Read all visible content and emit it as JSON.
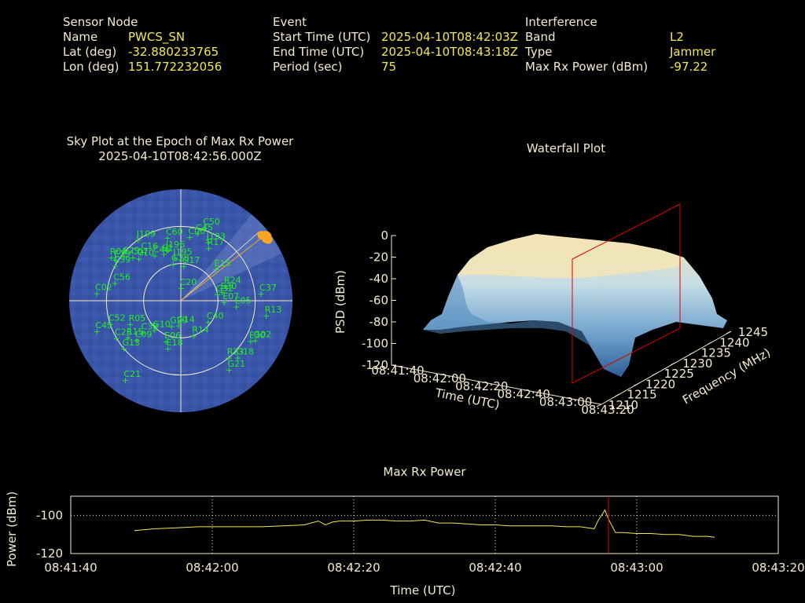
{
  "header": {
    "sensor": {
      "heading": "Sensor Node",
      "rows": [
        {
          "label": "Name",
          "value": "PWCS_SN"
        },
        {
          "label": "Lat (deg)",
          "value": "-32.880233765"
        },
        {
          "label": "Lon (deg)",
          "value": "151.772232056"
        }
      ]
    },
    "event": {
      "heading": "Event",
      "rows": [
        {
          "label": "Start Time (UTC)",
          "value": "2025-04-10T08:42:03Z"
        },
        {
          "label": "End Time (UTC)",
          "value": "2025-04-10T08:43:18Z"
        },
        {
          "label": "Period (sec)",
          "value": "75"
        }
      ]
    },
    "interference": {
      "heading": "Interference",
      "rows": [
        {
          "label": "Band",
          "value": "L2"
        },
        {
          "label": "Type",
          "value": "Jammer"
        },
        {
          "label": "Max Rx Power (dBm)",
          "value": "-97.22"
        }
      ]
    }
  },
  "colors": {
    "label": "#f3eccd",
    "value": "#f3e94c",
    "satellite": "#22ee22",
    "sky_fill": "#3a55a8",
    "marker": "#f5a623",
    "cursor": "#dd0000"
  },
  "chart_data": [
    {
      "type": "scatter",
      "title": "Sky Plot at the Epoch of Max Rx Power",
      "subtitle": "2025-04-10T08:42:56.000Z",
      "polar": true,
      "rings_deg": [
        0,
        30,
        60,
        90
      ],
      "satellites": [
        {
          "id": "C20",
          "az": 2,
          "el": 80
        },
        {
          "id": "G28",
          "az": 348,
          "el": 60
        },
        {
          "id": "J195",
          "az": 352,
          "el": 55
        },
        {
          "id": "R17",
          "az": 28,
          "el": 42
        },
        {
          "id": "J193",
          "az": 25,
          "el": 38
        },
        {
          "id": "C10",
          "az": 315,
          "el": 42
        },
        {
          "id": "C46",
          "az": 330,
          "el": 48
        },
        {
          "id": "E1",
          "az": 340,
          "el": 50
        },
        {
          "id": "J196",
          "az": 345,
          "el": 48
        },
        {
          "id": "C07",
          "az": 312,
          "el": 38
        },
        {
          "id": "C16",
          "az": 322,
          "el": 40
        },
        {
          "id": "C29",
          "az": 308,
          "el": 32
        },
        {
          "id": "C60",
          "az": 348,
          "el": 38
        },
        {
          "id": "C06",
          "az": 8,
          "el": 38
        },
        {
          "id": "C45",
          "az": 14,
          "el": 34
        },
        {
          "id": "E19",
          "az": 302,
          "el": 28
        },
        {
          "id": "J199",
          "az": 325,
          "el": 30
        },
        {
          "id": "C50",
          "az": 18,
          "el": 28
        },
        {
          "id": "R04",
          "az": 302,
          "el": 24
        },
        {
          "id": "G17",
          "az": 5,
          "el": 62
        },
        {
          "id": "C59",
          "az": 298,
          "el": 30
        },
        {
          "id": "C02",
          "az": 275,
          "el": 22
        },
        {
          "id": "C56",
          "az": 285,
          "el": 35
        },
        {
          "id": "E15",
          "az": 48,
          "el": 52
        },
        {
          "id": "R24",
          "az": 72,
          "el": 52
        },
        {
          "id": "C37",
          "az": 85,
          "el": 25
        },
        {
          "id": "E30",
          "az": 78,
          "el": 56
        },
        {
          "id": "G32",
          "az": 80,
          "el": 60
        },
        {
          "id": "E07",
          "az": 92,
          "el": 55
        },
        {
          "id": "E05",
          "az": 96,
          "el": 45
        },
        {
          "id": "R13",
          "az": 100,
          "el": 20
        },
        {
          "id": "C23",
          "az": 240,
          "el": 30
        },
        {
          "id": "C45",
          "az": 250,
          "el": 18
        },
        {
          "id": "C52",
          "az": 252,
          "el": 30
        },
        {
          "id": "R05",
          "az": 245,
          "el": 45
        },
        {
          "id": "G10",
          "az": 222,
          "el": 58
        },
        {
          "id": "C38",
          "az": 230,
          "el": 50
        },
        {
          "id": "G29",
          "az": 200,
          "el": 68
        },
        {
          "id": "G14",
          "az": 185,
          "el": 70
        },
        {
          "id": "C40",
          "az": 128,
          "el": 62
        },
        {
          "id": "E30",
          "az": 120,
          "el": 25
        },
        {
          "id": "G02",
          "az": 118,
          "el": 22
        },
        {
          "id": "R15",
          "az": 235,
          "el": 38
        },
        {
          "id": "C09",
          "az": 228,
          "el": 42
        },
        {
          "id": "E06",
          "az": 200,
          "el": 55
        },
        {
          "id": "R14",
          "az": 160,
          "el": 60
        },
        {
          "id": "E18",
          "az": 195,
          "el": 50
        },
        {
          "id": "G13",
          "az": 230,
          "el": 30
        },
        {
          "id": "R23",
          "az": 140,
          "el": 30
        },
        {
          "id": "G21",
          "az": 145,
          "el": 22
        },
        {
          "id": "C21",
          "az": 215,
          "el": 12
        },
        {
          "id": "G18",
          "az": 135,
          "el": 25
        }
      ],
      "jammer_track": [
        {
          "az": 51,
          "el": 6
        },
        {
          "az": 52,
          "el": 4
        },
        {
          "az": 53,
          "el": 3
        },
        {
          "az": 54,
          "el": 5
        },
        {
          "az": 55,
          "el": 4
        }
      ],
      "max_point": {
        "az": 52,
        "el": 4
      }
    },
    {
      "type": "heatmap",
      "title": "Waterfall Plot",
      "zlabel": "PSD (dBm)",
      "xlabel": "Time (UTC)",
      "ylabel": "Frequency (MHz)",
      "z_ticks": [
        "0",
        "-20",
        "-40",
        "-60",
        "-80",
        "-100",
        "-120"
      ],
      "time_ticks": [
        "08:41:40",
        "08:42:00",
        "08:42:20",
        "08:42:40",
        "08:43:00",
        "08:43:20"
      ],
      "freq_ticks": [
        "1210",
        "1215",
        "1220",
        "1225",
        "1230",
        "1235",
        "1240",
        "1245"
      ],
      "zlim": [
        -120,
        0
      ],
      "freq_range": [
        1210,
        1245
      ],
      "time_range": [
        "08:41:40",
        "08:43:20"
      ],
      "cursor_time": "08:42:56",
      "band_center_mhz": 1227.6,
      "plateau_psd": -15,
      "floor_psd": -90
    },
    {
      "type": "line",
      "title": "Max Rx Power",
      "xlabel": "Time (UTC)",
      "ylabel": "Power (dBm)",
      "ylim": [
        -120,
        -90
      ],
      "y_ticks": [
        "-100",
        "-120"
      ],
      "x_ticks": [
        "08:41:40",
        "08:42:00",
        "08:42:20",
        "08:42:40",
        "08:43:00",
        "08:43:20"
      ],
      "x_seconds_ticks": [
        0,
        20,
        40,
        60,
        80,
        100
      ],
      "series": [
        {
          "values_t_sec": [
            9,
            12,
            15,
            18,
            21,
            24,
            27,
            30,
            33,
            35,
            36,
            37,
            38,
            40,
            42,
            44,
            46,
            48,
            50,
            52,
            54,
            56,
            58,
            60,
            62,
            64,
            66,
            68,
            70,
            72,
            74,
            74.5,
            75.5,
            76,
            77,
            78,
            80,
            82,
            84,
            86,
            88,
            90,
            91
          ],
          "values_dbm": [
            -108,
            -107,
            -106.5,
            -106,
            -106,
            -106,
            -106,
            -105.5,
            -105,
            -103,
            -105,
            -103.5,
            -103,
            -103,
            -102.5,
            -102.5,
            -103,
            -103,
            -102.5,
            -104,
            -104,
            -104.5,
            -105,
            -105,
            -105.5,
            -105.5,
            -105.5,
            -105.5,
            -106,
            -106,
            -107,
            -103,
            -97.22,
            -102,
            -109,
            -109,
            -109.5,
            -109.5,
            -110,
            -110,
            -111,
            -111,
            -111.5
          ]
        }
      ],
      "cursor_t_sec": 76
    }
  ]
}
